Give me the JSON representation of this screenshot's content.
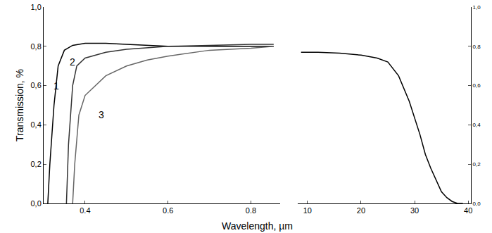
{
  "chart_data": {
    "type": "line",
    "xlabel": "Wavelength, µm",
    "ylabel": "Transmission, %",
    "grid": false,
    "panels": [
      {
        "xlim": [
          0.3,
          0.87
        ],
        "xticks": [
          0.4,
          0.6,
          0.8
        ],
        "ylim": [
          0,
          1.0
        ],
        "yticks": [
          {
            "value": 0,
            "label": "0,0"
          },
          {
            "value": 0.2,
            "label": "0,2"
          },
          {
            "value": 0.4,
            "label": "0,4"
          },
          {
            "value": 0.6,
            "label": "0,6"
          },
          {
            "value": 0.8,
            "label": "0,8"
          },
          {
            "value": 1.0,
            "label": "1,0"
          }
        ],
        "series": [
          {
            "color": "#000000",
            "x": [
              0.31,
              0.315,
              0.325,
              0.335,
              0.35,
              0.37,
              0.4,
              0.45,
              0.5,
              0.6,
              0.7,
              0.8,
              0.855
            ],
            "values": [
              0,
              0.2,
              0.5,
              0.7,
              0.78,
              0.805,
              0.815,
              0.815,
              0.81,
              0.8,
              0.8,
              0.8,
              0.8
            ]
          },
          {
            "color": "#333333",
            "x": [
              0.355,
              0.36,
              0.37,
              0.38,
              0.4,
              0.45,
              0.5,
              0.6,
              0.7,
              0.8,
              0.855
            ],
            "values": [
              0,
              0.3,
              0.6,
              0.7,
              0.74,
              0.77,
              0.785,
              0.8,
              0.805,
              0.81,
              0.81
            ]
          },
          {
            "color": "#666666",
            "x": [
              0.37,
              0.375,
              0.385,
              0.4,
              0.45,
              0.5,
              0.55,
              0.6,
              0.7,
              0.8,
              0.855
            ],
            "values": [
              0,
              0.2,
              0.45,
              0.55,
              0.65,
              0.7,
              0.73,
              0.75,
              0.78,
              0.79,
              0.8
            ]
          }
        ],
        "annotations": [
          {
            "text": "1",
            "x": 0.33,
            "y": 0.6
          },
          {
            "text": "2",
            "x": 0.37,
            "y": 0.72
          },
          {
            "text": "3",
            "x": 0.44,
            "y": 0.45
          }
        ]
      },
      {
        "xlim": [
          8.2,
          40.5
        ],
        "xticks": [
          10,
          20,
          30,
          40
        ],
        "ylim": [
          0,
          1.0
        ],
        "yticks": [
          {
            "value": 0,
            "label": "0,0"
          },
          {
            "value": 0.2,
            "label": "0,2"
          },
          {
            "value": 0.4,
            "label": "0,4"
          },
          {
            "value": 0.6,
            "label": "0,6"
          },
          {
            "value": 0.8,
            "label": "0,8"
          },
          {
            "value": 1.0,
            "label": "1,0"
          }
        ],
        "series": [
          {
            "color": "#000000",
            "x": [
              8.8,
              12,
              16,
              20,
              23,
              25,
              27,
              29,
              31,
              32,
              33,
              34,
              35,
              36,
              37,
              38,
              39
            ],
            "values": [
              0.77,
              0.77,
              0.765,
              0.755,
              0.74,
              0.72,
              0.65,
              0.52,
              0.35,
              0.25,
              0.18,
              0.12,
              0.06,
              0.03,
              0.01,
              0.0,
              0.0
            ]
          }
        ],
        "annotations": []
      }
    ]
  }
}
